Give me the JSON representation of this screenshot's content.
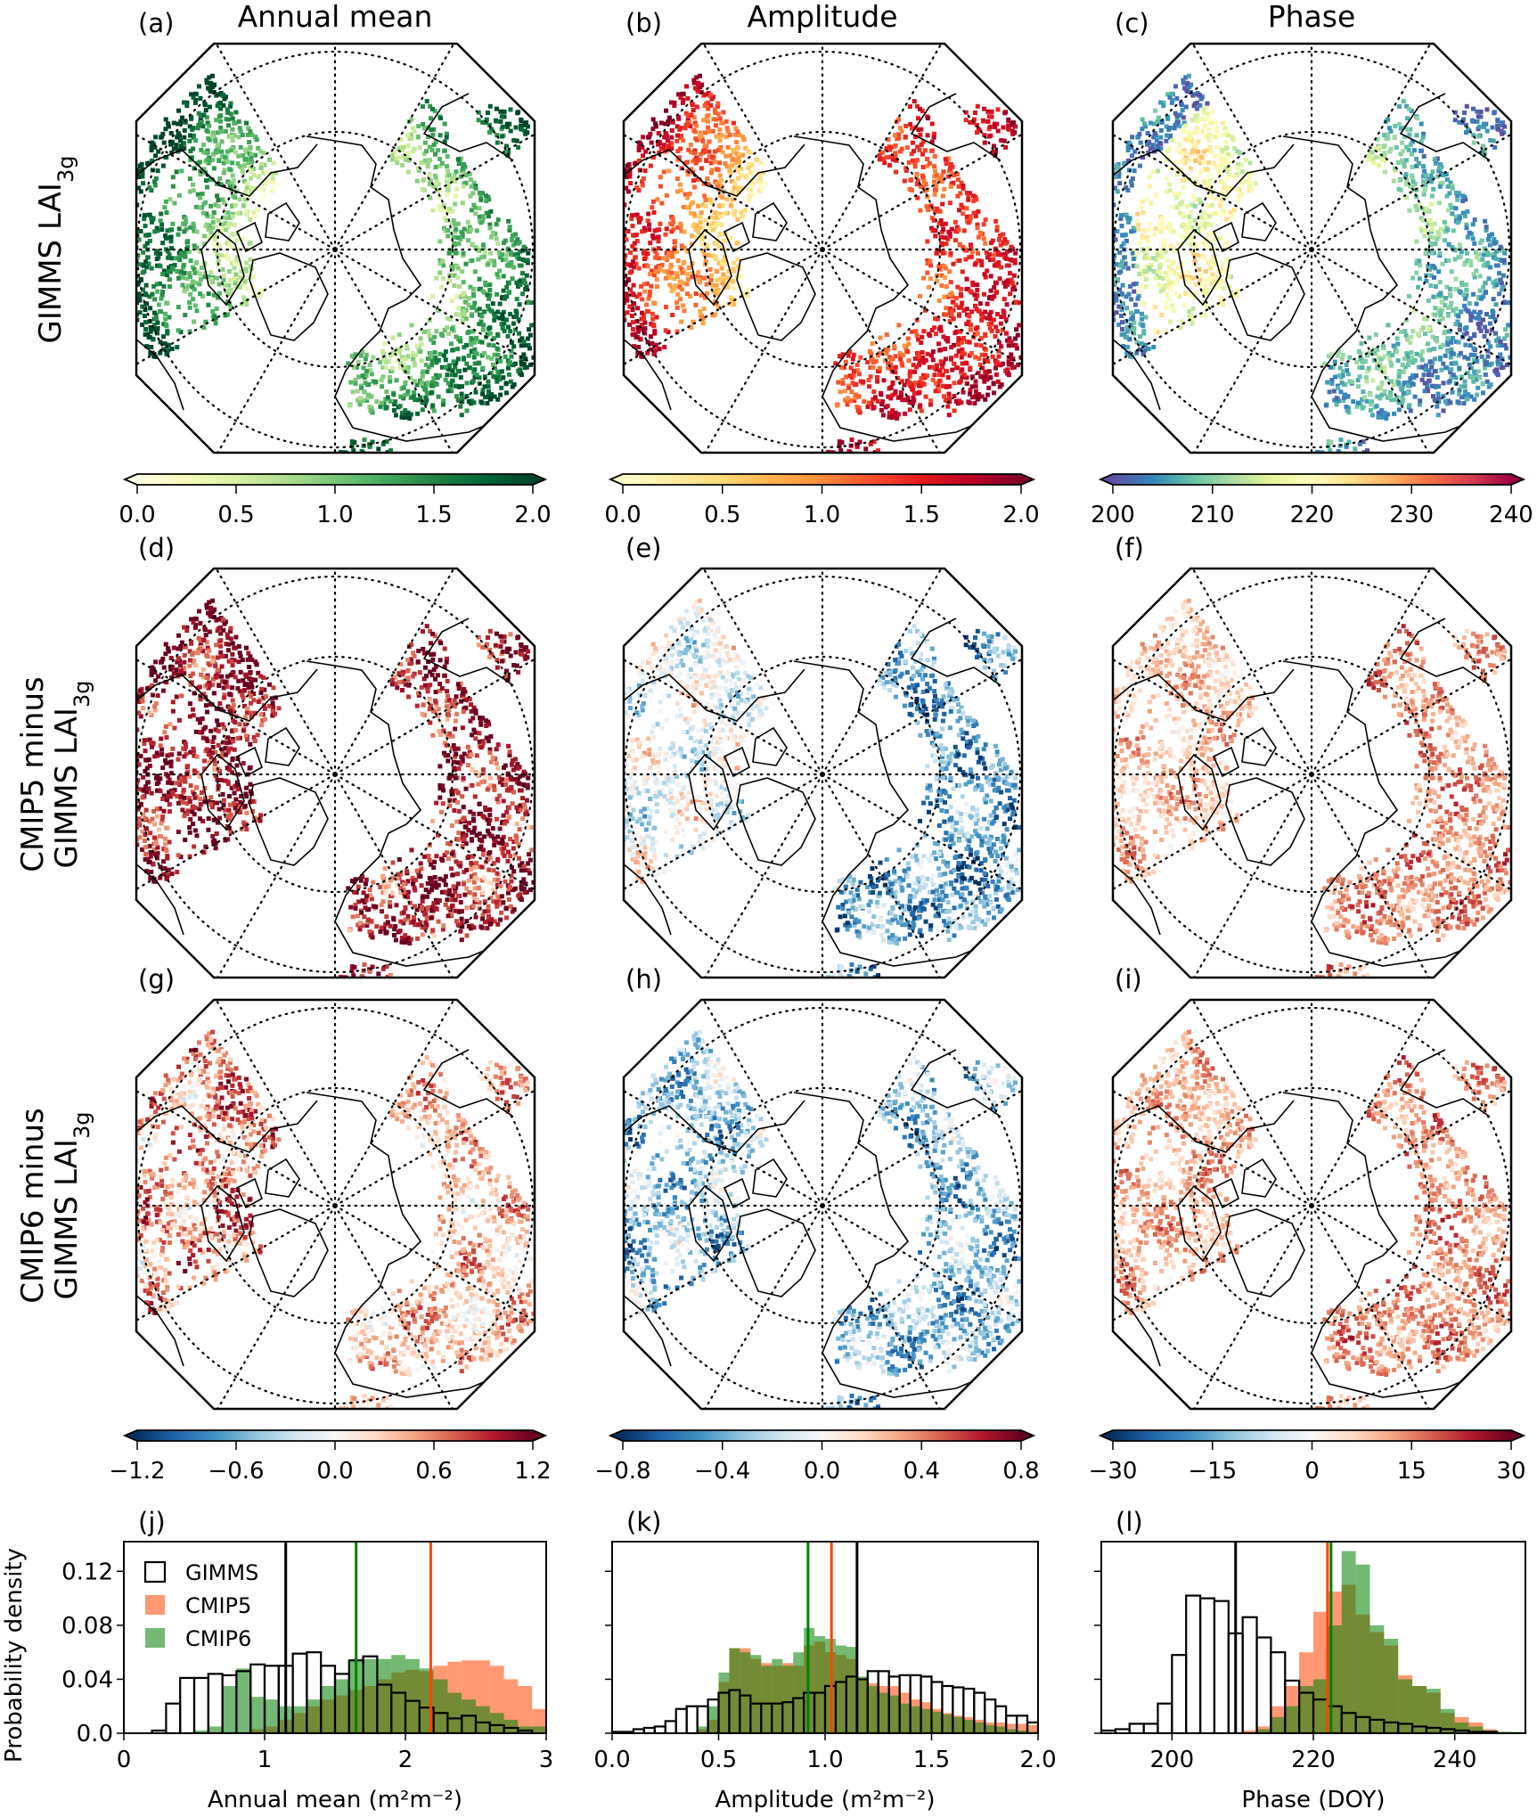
{
  "figure": {
    "columns": [
      "Annual mean",
      "Amplitude",
      "Phase"
    ],
    "row_labels": [
      {
        "line1": "",
        "main": "GIMMS LAI",
        "sub": "3g"
      },
      {
        "line1": "CMIP5 minus",
        "main": "GIMMS LAI",
        "sub": "3g"
      },
      {
        "line1": "CMIP6 minus",
        "main": "GIMMS LAI",
        "sub": "3g"
      }
    ],
    "panels": [
      {
        "label": "(a)",
        "colormap": "YlGn",
        "range": [
          0,
          2
        ]
      },
      {
        "label": "(b)",
        "colormap": "YlOrRd",
        "range": [
          0,
          2
        ]
      },
      {
        "label": "(c)",
        "colormap": "Spectral_r",
        "range": [
          200,
          240
        ]
      },
      {
        "label": "(d)",
        "colormap": "RdBu_r",
        "range": [
          -1.2,
          1.2
        ]
      },
      {
        "label": "(e)",
        "colormap": "RdBu_r",
        "range": [
          -0.8,
          0.8
        ]
      },
      {
        "label": "(f)",
        "colormap": "RdBu_r",
        "range": [
          -30,
          30
        ]
      },
      {
        "label": "(g)",
        "colormap": "RdBu_r",
        "range": [
          -1.2,
          1.2
        ]
      },
      {
        "label": "(h)",
        "colormap": "RdBu_r",
        "range": [
          -0.8,
          0.8
        ]
      },
      {
        "label": "(i)",
        "colormap": "RdBu_r",
        "range": [
          -30,
          30
        ]
      }
    ]
  },
  "colorbars": [
    {
      "colormap": "YlGn",
      "range": [
        0,
        2
      ],
      "extend": "both",
      "ticks": [
        "0.0",
        "0.5",
        "1.0",
        "1.5",
        "2.0"
      ]
    },
    {
      "colormap": "YlOrRd",
      "range": [
        0,
        2
      ],
      "extend": "both",
      "ticks": [
        "0.0",
        "0.5",
        "1.0",
        "1.5",
        "2.0"
      ]
    },
    {
      "colormap": "Spectral_r",
      "range": [
        200,
        240
      ],
      "extend": "both",
      "ticks": [
        "200",
        "210",
        "220",
        "230",
        "240"
      ]
    },
    {
      "colormap": "RdBu_r",
      "range": [
        -1.2,
        1.2
      ],
      "extend": "both",
      "ticks": [
        "−1.2",
        "−0.6",
        "0.0",
        "0.6",
        "1.2"
      ]
    },
    {
      "colormap": "RdBu_r",
      "range": [
        -0.8,
        0.8
      ],
      "extend": "both",
      "ticks": [
        "−0.8",
        "−0.4",
        "0.0",
        "0.4",
        "0.8"
      ]
    },
    {
      "colormap": "RdBu_r",
      "range": [
        -30,
        30
      ],
      "extend": "both",
      "ticks": [
        "−30",
        "−15",
        "0",
        "15",
        "30"
      ]
    }
  ],
  "colormaps": {
    "YlGn": [
      "#ffffe5",
      "#f7fcb9",
      "#d9f0a3",
      "#addd8e",
      "#78c679",
      "#41ab5d",
      "#238443",
      "#006837",
      "#004529"
    ],
    "YlOrRd": [
      "#ffffcc",
      "#ffeda0",
      "#fed976",
      "#feb24c",
      "#fd8d3c",
      "#fc4e2a",
      "#e31a1c",
      "#bd0026",
      "#800026"
    ],
    "Spectral_r": [
      "#5e4fa2",
      "#3288bd",
      "#66c2a5",
      "#abdda4",
      "#e6f598",
      "#ffffbf",
      "#fee08b",
      "#fdae61",
      "#f46d43",
      "#d53e4f",
      "#9e0142"
    ],
    "RdBu_r": [
      "#053061",
      "#2166ac",
      "#4393c3",
      "#92c5de",
      "#d1e5f0",
      "#f7f7f7",
      "#fddbc7",
      "#f4a582",
      "#d6604d",
      "#b2182b",
      "#67001f"
    ]
  },
  "legend": {
    "items": [
      {
        "name": "GIMMS",
        "style": "outline"
      },
      {
        "name": "CMIP5",
        "style": "fill"
      },
      {
        "name": "CMIP6",
        "style": "fill"
      }
    ]
  },
  "colors": {
    "GIMMS": "#000000",
    "CMIP5": "#ff4500",
    "CMIP6": "#008000"
  },
  "chart_data": [
    {
      "type": "bar",
      "panel_label": "(j)",
      "xlabel": "Annual mean (m²m⁻²)",
      "ylabel": "Probability density",
      "xlim": [
        0,
        3
      ],
      "ylim": [
        0,
        0.142
      ],
      "xticks": [
        {
          "v": 0,
          "label": "0"
        },
        {
          "v": 1,
          "label": "1"
        },
        {
          "v": 2,
          "label": "2"
        },
        {
          "v": 3,
          "label": "3"
        }
      ],
      "yticks": [
        {
          "v": 0,
          "label": "0.0"
        },
        {
          "v": 0.04,
          "label": "0.04"
        },
        {
          "v": 0.08,
          "label": "0.08"
        },
        {
          "v": 0.12,
          "label": "0.12"
        }
      ],
      "bin_start": 0,
      "bin_width": 0.1,
      "series": [
        {
          "name": "CMIP5",
          "values": [
            0,
            0,
            0,
            0,
            0,
            0,
            0,
            0,
            0,
            0.003,
            0.005,
            0.01,
            0.015,
            0.02,
            0.025,
            0.028,
            0.032,
            0.035,
            0.04,
            0.045,
            0.047,
            0.046,
            0.05,
            0.053,
            0.054,
            0.054,
            0.05,
            0.04,
            0.035,
            0.018
          ]
        },
        {
          "name": "CMIP6",
          "values": [
            0,
            0,
            0,
            0,
            0,
            0.002,
            0.005,
            0.035,
            0.048,
            0.027,
            0.025,
            0.02,
            0.02,
            0.025,
            0.035,
            0.04,
            0.055,
            0.055,
            0.055,
            0.058,
            0.055,
            0.048,
            0.04,
            0.03,
            0.025,
            0.02,
            0.015,
            0.01,
            0.005,
            0.005
          ]
        },
        {
          "name": "GIMMS",
          "values": [
            0,
            0,
            0.002,
            0.022,
            0.041,
            0.041,
            0.044,
            0.043,
            0.046,
            0.051,
            0.05,
            0.05,
            0.059,
            0.06,
            0.05,
            0.044,
            0.054,
            0.057,
            0.036,
            0.03,
            0.024,
            0.019,
            0.015,
            0.011,
            0.013,
            0.008,
            0.006,
            0.004,
            0.002,
            0
          ]
        }
      ],
      "mean_lines": [
        {
          "series": "GIMMS",
          "x": 1.15
        },
        {
          "series": "CMIP6",
          "x": 1.65
        },
        {
          "series": "CMIP5",
          "x": 2.18
        }
      ],
      "legend_position": "upper-left",
      "grid": false
    },
    {
      "type": "bar",
      "panel_label": "(k)",
      "xlabel": "Amplitude (m²m⁻²)",
      "ylabel": "",
      "xlim": [
        0,
        2
      ],
      "ylim": [
        0,
        0.142
      ],
      "xticks": [
        {
          "v": 0,
          "label": "0.0"
        },
        {
          "v": 0.5,
          "label": "0.5"
        },
        {
          "v": 1,
          "label": "1.0"
        },
        {
          "v": 1.5,
          "label": "1.5"
        },
        {
          "v": 2,
          "label": "2.0"
        }
      ],
      "yticks": [
        {
          "v": 0,
          "label": ""
        },
        {
          "v": 0.04,
          "label": ""
        },
        {
          "v": 0.08,
          "label": ""
        },
        {
          "v": 0.12,
          "label": ""
        }
      ],
      "bin_start": 0,
      "bin_width": 0.05,
      "series": [
        {
          "name": "CMIP5",
          "values": [
            0,
            0,
            0,
            0,
            0,
            0,
            0,
            0,
            0.003,
            0.01,
            0.038,
            0.063,
            0.063,
            0.055,
            0.052,
            0.05,
            0.052,
            0.05,
            0.065,
            0.068,
            0.06,
            0.058,
            0.055,
            0.04,
            0.037,
            0.035,
            0.035,
            0.03,
            0.025,
            0.023,
            0.018,
            0.015,
            0.013,
            0.012,
            0.01,
            0.008,
            0.008,
            0.007,
            0.007,
            0.006
          ]
        },
        {
          "name": "CMIP6",
          "values": [
            0,
            0,
            0,
            0,
            0,
            0,
            0,
            0,
            0.005,
            0.02,
            0.045,
            0.063,
            0.06,
            0.058,
            0.05,
            0.055,
            0.05,
            0.06,
            0.078,
            0.072,
            0.07,
            0.065,
            0.064,
            0.042,
            0.035,
            0.03,
            0.028,
            0.022,
            0.02,
            0.018,
            0.016,
            0.014,
            0.012,
            0.01,
            0.008,
            0.006,
            0.005,
            0.003,
            0.002,
            0.001
          ]
        },
        {
          "name": "GIMMS",
          "values": [
            0.001,
            0.001,
            0.003,
            0.004,
            0.005,
            0.009,
            0.018,
            0.02,
            0.02,
            0.025,
            0.03,
            0.032,
            0.028,
            0.022,
            0.022,
            0.022,
            0.023,
            0.026,
            0.03,
            0.03,
            0.035,
            0.038,
            0.042,
            0.04,
            0.046,
            0.046,
            0.042,
            0.043,
            0.043,
            0.042,
            0.038,
            0.035,
            0.034,
            0.033,
            0.03,
            0.025,
            0.02,
            0.013,
            0.013,
            0.008
          ]
        }
      ],
      "mean_lines": [
        {
          "series": "CMIP6",
          "x": 0.92
        },
        {
          "series": "CMIP5",
          "x": 1.03
        },
        {
          "series": "GIMMS",
          "x": 1.15
        }
      ],
      "grid": false
    },
    {
      "type": "bar",
      "panel_label": "(l)",
      "xlabel": "Phase (DOY)",
      "ylabel": "",
      "xlim": [
        190,
        250
      ],
      "ylim": [
        0,
        0.142
      ],
      "xticks": [
        {
          "v": 200,
          "label": "200"
        },
        {
          "v": 220,
          "label": "220"
        },
        {
          "v": 240,
          "label": "240"
        }
      ],
      "yticks": [
        {
          "v": 0,
          "label": ""
        },
        {
          "v": 0.04,
          "label": ""
        },
        {
          "v": 0.08,
          "label": ""
        },
        {
          "v": 0.12,
          "label": ""
        }
      ],
      "bin_start": 190,
      "bin_width": 2,
      "series": [
        {
          "name": "CMIP5",
          "values": [
            0,
            0,
            0,
            0,
            0,
            0,
            0,
            0,
            0,
            0,
            0.002,
            0.005,
            0.02,
            0.035,
            0.06,
            0.09,
            0.105,
            0.11,
            0.088,
            0.075,
            0.065,
            0.043,
            0.035,
            0.03,
            0.015,
            0.012,
            0.008,
            0.003,
            0.001,
            0
          ]
        },
        {
          "name": "CMIP6",
          "values": [
            0,
            0,
            0,
            0,
            0,
            0,
            0,
            0,
            0,
            0,
            0,
            0.003,
            0.012,
            0.02,
            0.035,
            0.04,
            0.08,
            0.135,
            0.125,
            0.08,
            0.07,
            0.04,
            0.035,
            0.033,
            0.018,
            0.008,
            0.005,
            0.002,
            0.001,
            0.001
          ]
        },
        {
          "name": "GIMMS",
          "values": [
            0.002,
            0.003,
            0.007,
            0.007,
            0.022,
            0.058,
            0.102,
            0.1,
            0.098,
            0.074,
            0.086,
            0.071,
            0.06,
            0.039,
            0.03,
            0.025,
            0.02,
            0.015,
            0.012,
            0.01,
            0.008,
            0.007,
            0.005,
            0.004,
            0.003,
            0.002,
            0.001,
            0.001,
            0,
            0
          ]
        }
      ],
      "mean_lines": [
        {
          "series": "GIMMS",
          "x": 209
        },
        {
          "series": "CMIP5",
          "x": 222
        },
        {
          "series": "CMIP6",
          "x": 222.5
        }
      ],
      "grid": false
    }
  ]
}
